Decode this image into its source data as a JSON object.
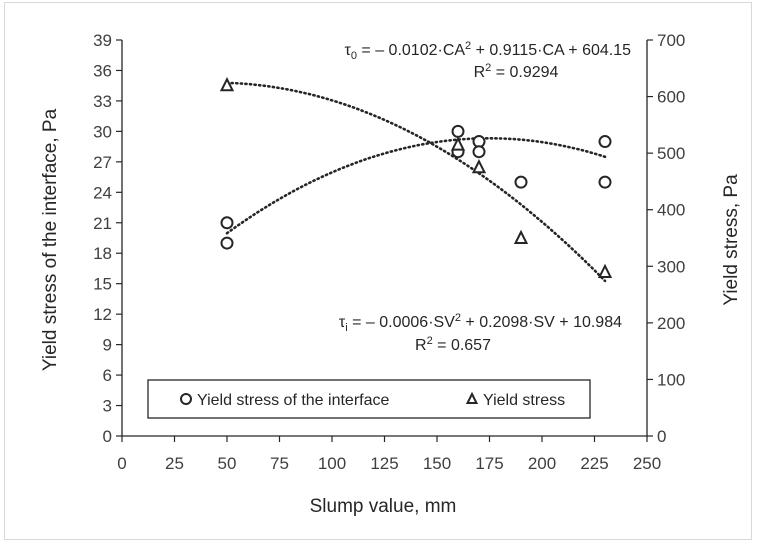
{
  "chart_data": {
    "type": "scatter",
    "xlabel": "Slump value, mm",
    "ylabel_left": "Yield stress of the interface, Pa",
    "ylabel_right": "Yield stress, Pa",
    "xlim": [
      0,
      250
    ],
    "xticks": [
      0,
      25,
      50,
      75,
      100,
      125,
      150,
      175,
      200,
      225,
      250
    ],
    "ylim_left": [
      0,
      39
    ],
    "yticks_left": [
      0,
      3,
      6,
      9,
      12,
      15,
      18,
      21,
      24,
      27,
      30,
      33,
      36,
      39
    ],
    "ylim_right": [
      0,
      700
    ],
    "yticks_right": [
      0,
      100,
      200,
      300,
      400,
      500,
      600,
      700
    ],
    "grid": false,
    "legend_position": "bottom-center",
    "series": [
      {
        "name": "Yield stress of the interface",
        "axis": "left",
        "marker": "circle",
        "points": [
          {
            "x": 50,
            "y": 21
          },
          {
            "x": 50,
            "y": 19
          },
          {
            "x": 160,
            "y": 30
          },
          {
            "x": 160,
            "y": 28
          },
          {
            "x": 170,
            "y": 29
          },
          {
            "x": 170,
            "y": 28
          },
          {
            "x": 190,
            "y": 25
          },
          {
            "x": 230,
            "y": 29
          },
          {
            "x": 230,
            "y": 25
          }
        ],
        "trendline": {
          "type": "poly2",
          "a": -0.0006,
          "b": 0.2098,
          "c": 10.984,
          "x_range": [
            50,
            230
          ]
        }
      },
      {
        "name": "Yield stress",
        "axis": "right",
        "marker": "triangle",
        "points": [
          {
            "x": 50,
            "y": 620
          },
          {
            "x": 160,
            "y": 515
          },
          {
            "x": 170,
            "y": 475
          },
          {
            "x": 190,
            "y": 350
          },
          {
            "x": 230,
            "y": 290
          }
        ],
        "trendline": {
          "type": "poly2",
          "a": -0.0102,
          "b": 0.9115,
          "c": 604.15,
          "x_range": [
            50,
            230
          ]
        }
      }
    ],
    "annotations": {
      "eq_top_prefix": "τ",
      "eq_top_sub": "0",
      "eq_top_a": " = – 0.0102·CA",
      "eq_top_sup": "2",
      "eq_top_b": " + 0.9115·CA + 604.15",
      "r2_top_prefix": "R",
      "r2_top_sup": "2",
      "r2_top_val": " = 0.9294",
      "eq_bot_prefix": "τ",
      "eq_bot_sub": "i",
      "eq_bot_a": " = – 0.0006·SV",
      "eq_bot_sup": "2",
      "eq_bot_b": " + 0.2098·SV + 10.984",
      "r2_bot_prefix": "R",
      "r2_bot_sup": "2",
      "r2_bot_val": " = 0.657"
    },
    "colors": {
      "marker": "#262626",
      "trend": "#262626",
      "axis": "#262626"
    }
  }
}
